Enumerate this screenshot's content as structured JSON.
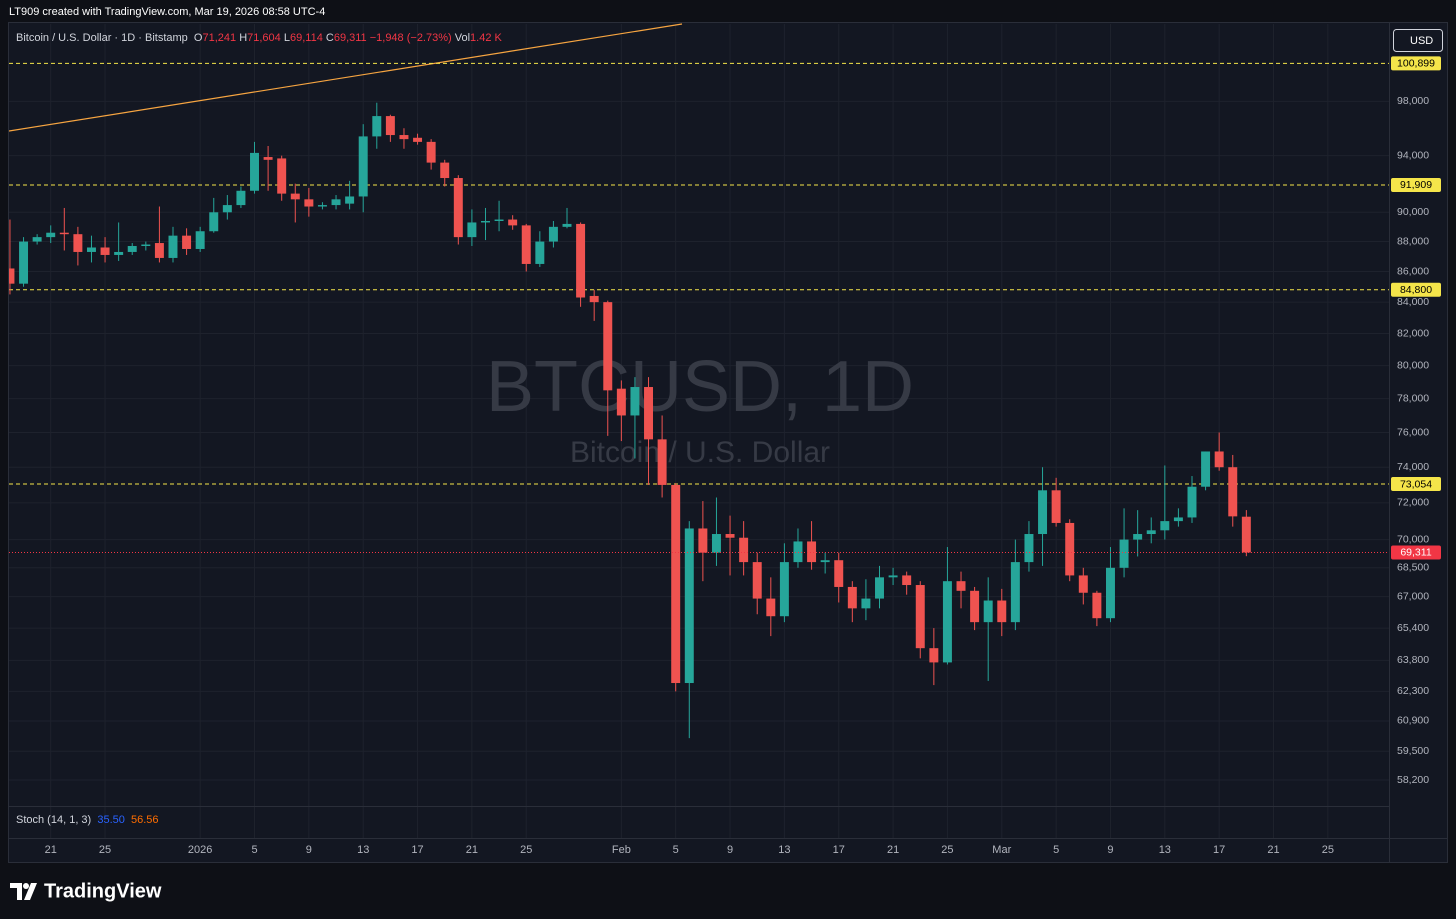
{
  "header": {
    "credit": "LT909 created with TradingView.com, Mar 19, 2026 08:58 UTC-4",
    "symbol": "Bitcoin / U.S. Dollar · 1D · Bitstamp",
    "ohlc": [
      {
        "key": "O",
        "value": "71,241"
      },
      {
        "key": "H",
        "value": "71,604"
      },
      {
        "key": "L",
        "value": "69,114"
      },
      {
        "key": "C",
        "value": "69,311"
      }
    ],
    "change": "−1,948 (−2.73%)",
    "volume_key": "Vol",
    "volume": "1.42 K"
  },
  "currency": "USD",
  "watermark": {
    "title": "BTCUSD, 1D",
    "subtitle": "Bitcoin / U.S. Dollar"
  },
  "indicator": {
    "name": "Stoch (14, 1, 3)",
    "k": "35.50",
    "d": "56.56"
  },
  "brand": "TradingView",
  "chart_data": {
    "type": "candlestick",
    "log_scale": true,
    "grid": true,
    "up_color": "#26a69a",
    "down_color": "#ef5350",
    "open": [
      86200,
      85200,
      88000,
      88300,
      88600,
      88500,
      87300,
      87600,
      87100,
      87300,
      87700,
      87900,
      86900,
      88400,
      87500,
      88700,
      90000,
      90500,
      91500,
      93900,
      93800,
      91300,
      90900,
      90400,
      90500,
      90600,
      91100,
      95400,
      96900,
      95500,
      95300,
      95000,
      93500,
      92400,
      88300,
      89300,
      89400,
      89500,
      89100,
      86500,
      88000,
      89000,
      89200,
      84400,
      84000,
      78600,
      77000,
      78700,
      75600,
      73000,
      62700,
      70600,
      69300,
      70300,
      70100,
      68800,
      66900,
      66000,
      68800,
      69900,
      68800,
      68900,
      67500,
      66400,
      66900,
      68000,
      68100,
      67600,
      64400,
      63700,
      67800,
      67300,
      65700,
      66800,
      65700,
      68800,
      70300,
      72700,
      70900,
      68100,
      67200,
      65900,
      68500,
      70000,
      70300,
      70500,
      71000,
      71200,
      72900,
      74900,
      74000,
      71241
    ],
    "high": [
      89500,
      88300,
      88500,
      89100,
      90300,
      89000,
      88400,
      88300,
      89300,
      87900,
      88000,
      90400,
      89000,
      88900,
      89000,
      91000,
      91200,
      91800,
      95000,
      94700,
      94000,
      92000,
      91700,
      90700,
      91200,
      92200,
      96300,
      97900,
      97000,
      96000,
      95600,
      95200,
      93700,
      92600,
      90200,
      90300,
      90800,
      89800,
      89200,
      88700,
      89400,
      90300,
      89300,
      84800,
      84100,
      79100,
      79300,
      79300,
      77000,
      73100,
      71000,
      72100,
      72300,
      71300,
      71000,
      69300,
      68000,
      69800,
      70600,
      71000,
      69300,
      69300,
      67800,
      67900,
      68600,
      68500,
      68300,
      67800,
      65400,
      69600,
      68300,
      67500,
      68000,
      67400,
      70000,
      71000,
      74000,
      73400,
      71100,
      68500,
      67300,
      69600,
      71700,
      71600,
      71200,
      74100,
      71700,
      73500,
      74900,
      76000,
      74700,
      71604
    ],
    "low": [
      84500,
      85000,
      87800,
      87900,
      87400,
      86400,
      86600,
      86600,
      86700,
      87100,
      87400,
      86600,
      86600,
      87100,
      87300,
      88600,
      89500,
      90300,
      91300,
      91500,
      90800,
      89300,
      89700,
      90200,
      90200,
      90200,
      90000,
      94500,
      95000,
      94500,
      94800,
      93000,
      91800,
      87800,
      87700,
      88100,
      88700,
      88800,
      86000,
      86300,
      87600,
      88900,
      83700,
      82800,
      75800,
      75500,
      74500,
      73000,
      72300,
      62300,
      60100,
      67800,
      68600,
      68100,
      68100,
      66100,
      65000,
      65700,
      68500,
      68400,
      68200,
      66700,
      65700,
      65800,
      66400,
      67600,
      67100,
      63900,
      62600,
      63600,
      66400,
      65300,
      62800,
      65000,
      65300,
      68300,
      68600,
      70700,
      67800,
      66600,
      65500,
      65700,
      68000,
      69100,
      69800,
      70000,
      70700,
      70900,
      72700,
      73800,
      70700,
      69114
    ],
    "close": [
      85200,
      88000,
      88300,
      88600,
      88500,
      87300,
      87600,
      87100,
      87300,
      87700,
      87800,
      86900,
      88400,
      87500,
      88700,
      90000,
      90500,
      91500,
      94200,
      93700,
      91300,
      90900,
      90400,
      90500,
      90900,
      91100,
      95400,
      96900,
      95500,
      95200,
      95000,
      93500,
      92400,
      88300,
      89300,
      89400,
      89500,
      89100,
      86500,
      88000,
      89000,
      89200,
      84300,
      84000,
      78500,
      77000,
      78700,
      75600,
      73000,
      62700,
      70600,
      69300,
      70300,
      70100,
      68800,
      66900,
      66000,
      68800,
      69900,
      68800,
      68900,
      67500,
      66400,
      66900,
      68000,
      68100,
      67600,
      64400,
      63700,
      67800,
      67300,
      65700,
      66800,
      65700,
      68800,
      70300,
      72700,
      70900,
      68100,
      67200,
      65900,
      68500,
      70000,
      70300,
      70500,
      71000,
      71200,
      72900,
      74900,
      74000,
      71259,
      69311
    ],
    "xlim": [
      -0.07,
      101.5
    ],
    "xticks": [
      {
        "value": 3,
        "label": "21"
      },
      {
        "value": 7,
        "label": "25"
      },
      {
        "value": 14,
        "label": "2026"
      },
      {
        "value": 18,
        "label": "5"
      },
      {
        "value": 22,
        "label": "9"
      },
      {
        "value": 26,
        "label": "13"
      },
      {
        "value": 30,
        "label": "17"
      },
      {
        "value": 34,
        "label": "21"
      },
      {
        "value": 38,
        "label": "25"
      },
      {
        "value": 45,
        "label": "Feb"
      },
      {
        "value": 49,
        "label": "5"
      },
      {
        "value": 53,
        "label": "9"
      },
      {
        "value": 57,
        "label": "13"
      },
      {
        "value": 61,
        "label": "17"
      },
      {
        "value": 65,
        "label": "21"
      },
      {
        "value": 69,
        "label": "25"
      },
      {
        "value": 73,
        "label": "Mar"
      },
      {
        "value": 77,
        "label": "5"
      },
      {
        "value": 81,
        "label": "9"
      },
      {
        "value": 85,
        "label": "13"
      },
      {
        "value": 89,
        "label": "17"
      },
      {
        "value": 93,
        "label": "21"
      },
      {
        "value": 97,
        "label": "25"
      }
    ],
    "ylim": [
      57050,
      104000
    ],
    "yticks": [
      {
        "value": 98000,
        "label": "98,000"
      },
      {
        "value": 94000,
        "label": "94,000"
      },
      {
        "value": 90000,
        "label": "90,000"
      },
      {
        "value": 88000,
        "label": "88,000"
      },
      {
        "value": 86000,
        "label": "86,000"
      },
      {
        "value": 84000,
        "label": "84,000"
      },
      {
        "value": 82000,
        "label": "82,000"
      },
      {
        "value": 80000,
        "label": "80,000"
      },
      {
        "value": 78000,
        "label": "78,000"
      },
      {
        "value": 76000,
        "label": "76,000"
      },
      {
        "value": 74000,
        "label": "74,000"
      },
      {
        "value": 72000,
        "label": "72,000"
      },
      {
        "value": 70000,
        "label": "70,000"
      },
      {
        "value": 68500,
        "label": "68,500"
      },
      {
        "value": 67000,
        "label": "67,000"
      },
      {
        "value": 65400,
        "label": "65,400"
      },
      {
        "value": 63800,
        "label": "63,800"
      },
      {
        "value": 62300,
        "label": "62,300"
      },
      {
        "value": 60900,
        "label": "60,900"
      },
      {
        "value": 59500,
        "label": "59,500"
      },
      {
        "value": 58200,
        "label": "58,200"
      }
    ],
    "levels": [
      {
        "value": 100899,
        "label": "100,899"
      },
      {
        "value": 91909,
        "label": "91,909"
      },
      {
        "value": 84800,
        "label": "84,800"
      },
      {
        "value": 73054,
        "label": "73,054"
      }
    ],
    "level_color": "#f5e54a",
    "last_price": {
      "value": 69311,
      "label": "69,311"
    },
    "last_price_color": "#f23645"
  }
}
